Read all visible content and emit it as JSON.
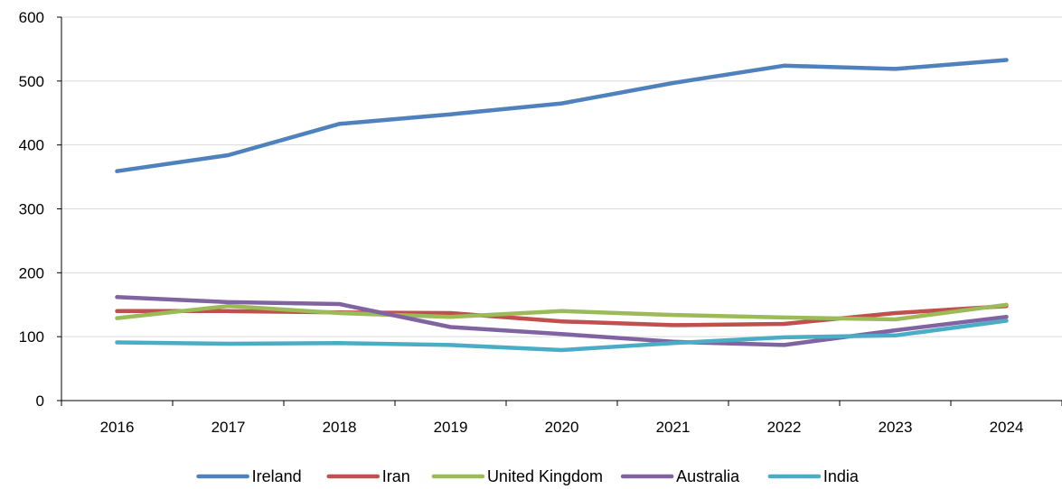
{
  "chart_data": {
    "type": "line",
    "title": "",
    "xlabel": "",
    "ylabel": "",
    "categories": [
      "2016",
      "2017",
      "2018",
      "2019",
      "2020",
      "2021",
      "2022",
      "2023",
      "2024"
    ],
    "ylim": [
      0,
      600
    ],
    "yticks": [
      "0",
      "100",
      "200",
      "300",
      "400",
      "500",
      "600"
    ],
    "grid": "horizontal",
    "legend_position": "bottom",
    "series": [
      {
        "name": "Ireland",
        "color": "#4F81BD",
        "values": [
          359,
          384,
          433,
          448,
          465,
          497,
          524,
          519,
          533
        ]
      },
      {
        "name": "Iran",
        "color": "#C0504D",
        "values": [
          140,
          140,
          138,
          137,
          124,
          118,
          120,
          137,
          148
        ]
      },
      {
        "name": "United Kingdom",
        "color": "#9BBB59",
        "values": [
          129,
          148,
          137,
          131,
          140,
          134,
          130,
          127,
          150
        ]
      },
      {
        "name": "Australia",
        "color": "#8064A2",
        "values": [
          162,
          154,
          151,
          115,
          104,
          92,
          87,
          110,
          131
        ]
      },
      {
        "name": "India",
        "color": "#4BACC6",
        "values": [
          91,
          89,
          90,
          87,
          79,
          90,
          99,
          102,
          125
        ]
      }
    ]
  }
}
